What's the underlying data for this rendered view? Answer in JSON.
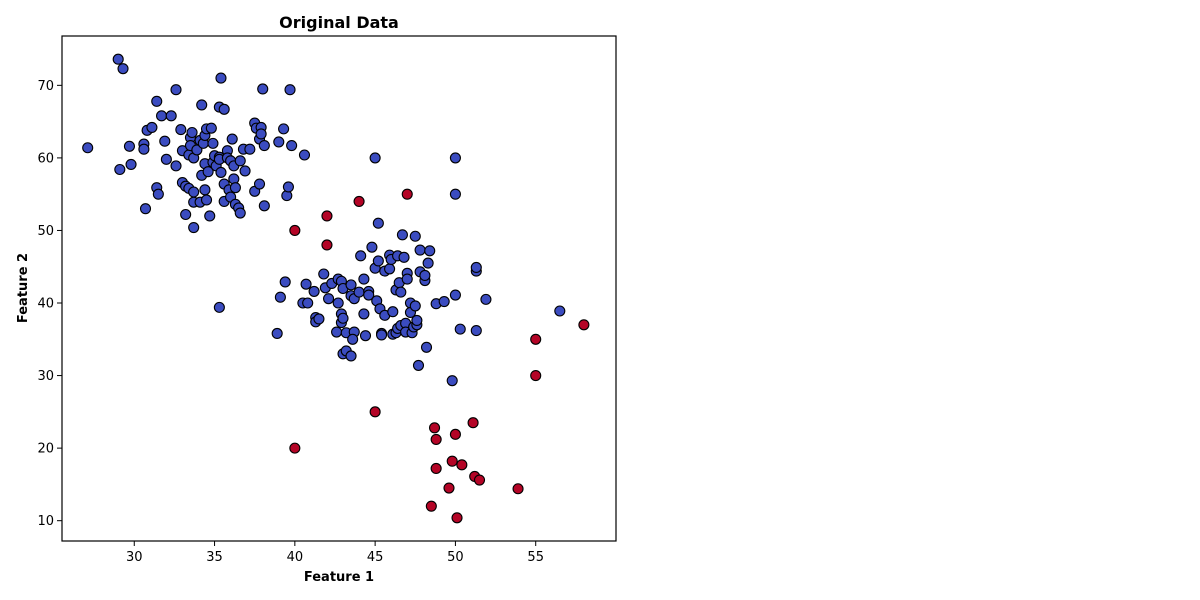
{
  "chart_data": {
    "type": "scatter",
    "title": "Original Data",
    "xlabel": "Feature 1",
    "ylabel": "Feature 2",
    "xlim": [
      25.5,
      60.0
    ],
    "ylim": [
      7.2,
      76.8
    ],
    "xticks": [
      30,
      35,
      40,
      45,
      50,
      55
    ],
    "yticks": [
      10,
      20,
      30,
      40,
      50,
      60,
      70
    ],
    "grid": false,
    "colors": {
      "normal": "#3b4cc0",
      "anomaly": "#b40426",
      "edge": "#000000"
    },
    "series": [
      {
        "points": [
          [
            29.0,
            73.6
          ],
          [
            29.3,
            72.3
          ],
          [
            27.1,
            61.4
          ],
          [
            29.1,
            58.4
          ],
          [
            29.8,
            59.1
          ],
          [
            29.7,
            61.6
          ],
          [
            30.6,
            61.9
          ],
          [
            30.6,
            61.2
          ],
          [
            30.8,
            63.8
          ],
          [
            31.1,
            64.2
          ],
          [
            30.7,
            53.0
          ],
          [
            31.4,
            55.9
          ],
          [
            31.5,
            55.0
          ],
          [
            31.4,
            67.8
          ],
          [
            31.7,
            65.8
          ],
          [
            31.9,
            62.3
          ],
          [
            32.0,
            59.8
          ],
          [
            32.3,
            65.8
          ],
          [
            32.6,
            69.4
          ],
          [
            32.6,
            58.9
          ],
          [
            32.9,
            63.9
          ],
          [
            33.0,
            61.0
          ],
          [
            33.0,
            56.6
          ],
          [
            33.2,
            56.1
          ],
          [
            33.2,
            52.2
          ],
          [
            33.4,
            60.4
          ],
          [
            33.5,
            62.8
          ],
          [
            33.4,
            55.8
          ],
          [
            33.6,
            63.5
          ],
          [
            33.5,
            61.7
          ],
          [
            33.7,
            60.0
          ],
          [
            33.7,
            55.3
          ],
          [
            33.7,
            53.9
          ],
          [
            33.7,
            50.4
          ],
          [
            33.9,
            61.1
          ],
          [
            34.1,
            62.4
          ],
          [
            34.1,
            53.9
          ],
          [
            34.2,
            67.3
          ],
          [
            34.2,
            57.6
          ],
          [
            34.3,
            62.0
          ],
          [
            34.4,
            63.1
          ],
          [
            34.5,
            64.0
          ],
          [
            34.4,
            59.2
          ],
          [
            34.4,
            55.6
          ],
          [
            34.5,
            54.2
          ],
          [
            34.6,
            58.1
          ],
          [
            34.7,
            52.0
          ],
          [
            34.8,
            64.1
          ],
          [
            34.9,
            62.0
          ],
          [
            34.9,
            59.4
          ],
          [
            35.0,
            60.3
          ],
          [
            35.1,
            58.9
          ],
          [
            35.3,
            67.0
          ],
          [
            35.4,
            71.0
          ],
          [
            35.3,
            60.1
          ],
          [
            35.3,
            59.8
          ],
          [
            35.4,
            58.0
          ],
          [
            35.3,
            39.4
          ],
          [
            35.6,
            66.7
          ],
          [
            35.6,
            56.4
          ],
          [
            35.6,
            54.0
          ],
          [
            35.8,
            61.0
          ],
          [
            35.8,
            60.0
          ],
          [
            36.0,
            59.6
          ],
          [
            35.9,
            55.6
          ],
          [
            36.0,
            54.6
          ],
          [
            36.1,
            62.6
          ],
          [
            36.2,
            58.9
          ],
          [
            36.2,
            57.1
          ],
          [
            36.3,
            55.9
          ],
          [
            36.3,
            53.6
          ],
          [
            36.5,
            53.1
          ],
          [
            36.6,
            52.4
          ],
          [
            36.6,
            59.6
          ],
          [
            36.8,
            61.2
          ],
          [
            36.9,
            58.2
          ],
          [
            37.2,
            61.2
          ],
          [
            37.5,
            64.8
          ],
          [
            37.6,
            64.1
          ],
          [
            37.5,
            55.4
          ],
          [
            37.8,
            62.6
          ],
          [
            37.8,
            56.4
          ],
          [
            37.9,
            64.2
          ],
          [
            37.9,
            63.3
          ],
          [
            38.0,
            69.5
          ],
          [
            38.1,
            61.7
          ],
          [
            38.1,
            53.4
          ],
          [
            39.0,
            62.2
          ],
          [
            39.3,
            64.0
          ],
          [
            39.5,
            54.8
          ],
          [
            39.6,
            56.0
          ],
          [
            39.7,
            69.4
          ],
          [
            39.8,
            61.7
          ],
          [
            40.6,
            60.4
          ],
          [
            39.4,
            42.9
          ],
          [
            39.1,
            40.8
          ],
          [
            38.9,
            35.8
          ],
          [
            40.5,
            40.0
          ],
          [
            40.8,
            40.0
          ],
          [
            40.7,
            42.6
          ],
          [
            41.2,
            41.6
          ],
          [
            41.3,
            38.0
          ],
          [
            41.3,
            37.4
          ],
          [
            41.5,
            37.8
          ],
          [
            41.8,
            44.0
          ],
          [
            41.9,
            42.1
          ],
          [
            42.1,
            40.6
          ],
          [
            42.3,
            42.7
          ],
          [
            42.7,
            43.3
          ],
          [
            42.7,
            40.0
          ],
          [
            42.6,
            36.0
          ],
          [
            42.9,
            43.0
          ],
          [
            42.9,
            38.5
          ],
          [
            42.9,
            37.3
          ],
          [
            43.0,
            42.0
          ],
          [
            43.0,
            37.9
          ],
          [
            43.2,
            35.9
          ],
          [
            43.0,
            33.0
          ],
          [
            43.2,
            33.4
          ],
          [
            43.5,
            41.0
          ],
          [
            43.5,
            42.5
          ],
          [
            43.5,
            32.7
          ],
          [
            43.7,
            40.6
          ],
          [
            43.7,
            36.0
          ],
          [
            43.6,
            35.0
          ],
          [
            44.0,
            41.5
          ],
          [
            44.1,
            46.5
          ],
          [
            44.3,
            43.3
          ],
          [
            44.3,
            38.5
          ],
          [
            44.4,
            35.5
          ],
          [
            44.6,
            41.6
          ],
          [
            44.6,
            41.1
          ],
          [
            44.8,
            47.7
          ],
          [
            45.0,
            44.8
          ],
          [
            45.1,
            40.3
          ],
          [
            45.2,
            51.0
          ],
          [
            45.2,
            45.8
          ],
          [
            45.3,
            39.2
          ],
          [
            45.4,
            35.8
          ],
          [
            45.4,
            35.6
          ],
          [
            45.6,
            44.4
          ],
          [
            45.6,
            38.3
          ],
          [
            45.9,
            44.7
          ],
          [
            45.9,
            46.6
          ],
          [
            46.0,
            46.0
          ],
          [
            46.1,
            38.8
          ],
          [
            46.1,
            35.7
          ],
          [
            46.3,
            41.8
          ],
          [
            46.3,
            35.9
          ],
          [
            46.4,
            46.5
          ],
          [
            46.4,
            36.5
          ],
          [
            46.5,
            42.8
          ],
          [
            46.6,
            41.5
          ],
          [
            46.6,
            36.9
          ],
          [
            46.7,
            49.4
          ],
          [
            46.8,
            46.3
          ],
          [
            46.9,
            37.2
          ],
          [
            46.9,
            36.0
          ],
          [
            47.0,
            44.1
          ],
          [
            47.0,
            43.3
          ],
          [
            47.2,
            40.0
          ],
          [
            47.2,
            38.7
          ],
          [
            47.3,
            35.9
          ],
          [
            47.4,
            36.7
          ],
          [
            47.5,
            49.2
          ],
          [
            47.5,
            39.6
          ],
          [
            47.6,
            37.0
          ],
          [
            47.6,
            37.6
          ],
          [
            47.7,
            31.4
          ],
          [
            47.8,
            47.3
          ],
          [
            47.8,
            44.3
          ],
          [
            48.1,
            43.1
          ],
          [
            48.1,
            43.8
          ],
          [
            48.2,
            33.9
          ],
          [
            48.3,
            45.5
          ],
          [
            48.4,
            47.2
          ],
          [
            48.8,
            39.9
          ],
          [
            49.3,
            40.2
          ],
          [
            49.8,
            29.3
          ],
          [
            50.0,
            41.1
          ],
          [
            50.3,
            36.4
          ],
          [
            51.3,
            44.4
          ],
          [
            51.3,
            44.9
          ],
          [
            51.3,
            36.2
          ],
          [
            51.9,
            40.5
          ],
          [
            56.5,
            38.9
          ],
          [
            45.0,
            60.0
          ],
          [
            50.0,
            60.0
          ],
          [
            50.0,
            55.0
          ]
        ]
      },
      {
        "points": [
          [
            44.0,
            54.0
          ],
          [
            47.0,
            55.0
          ],
          [
            42.0,
            52.0
          ],
          [
            40.0,
            50.0
          ],
          [
            42.0,
            48.0
          ],
          [
            58.0,
            37.0
          ],
          [
            55.0,
            35.0
          ],
          [
            55.0,
            30.0
          ],
          [
            45.0,
            25.0
          ],
          [
            51.1,
            23.5
          ],
          [
            48.7,
            22.8
          ],
          [
            48.8,
            21.2
          ],
          [
            50.0,
            21.9
          ],
          [
            40.0,
            20.0
          ],
          [
            49.8,
            18.2
          ],
          [
            50.4,
            17.7
          ],
          [
            48.8,
            17.2
          ],
          [
            51.2,
            16.1
          ],
          [
            51.5,
            15.6
          ],
          [
            49.6,
            14.5
          ],
          [
            53.9,
            14.4
          ],
          [
            48.5,
            12.0
          ],
          [
            50.1,
            10.4
          ]
        ]
      }
    ]
  }
}
